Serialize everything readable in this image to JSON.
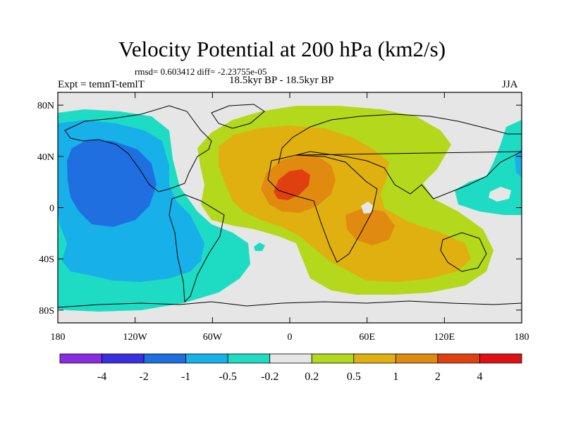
{
  "title": "Velocity Potential at 200 hPa (km2/s)",
  "stats_line": "rmsd= 0.603412 diff= -2.23755e-05",
  "left_label": "Expt = temnT-temlT",
  "center_label": "18.5kyr BP - 18.5kyr BP",
  "right_label": "JJA",
  "map": {
    "lat_ticks": [
      {
        "label": "80N",
        "lat": 80
      },
      {
        "label": "40N",
        "lat": 40
      },
      {
        "label": "0",
        "lat": 0
      },
      {
        "label": "40S",
        "lat": -40
      },
      {
        "label": "80S",
        "lat": -80
      }
    ],
    "lon_ticks": [
      {
        "label": "180",
        "lon": -180
      },
      {
        "label": "120W",
        "lon": -120
      },
      {
        "label": "60W",
        "lon": -60
      },
      {
        "label": "0",
        "lon": 0
      },
      {
        "label": "60E",
        "lon": 60
      },
      {
        "label": "120E",
        "lon": 120
      },
      {
        "label": "180",
        "lon": 180
      }
    ]
  },
  "colorbar": {
    "colors": [
      "#8a2be2",
      "#3a30e0",
      "#1f6fe0",
      "#18b0e8",
      "#1edcc4",
      "#e6e6e6",
      "#b4d81c",
      "#e0b010",
      "#e08a10",
      "#e04010",
      "#e01010"
    ],
    "labels": [
      "-4",
      "-2",
      "-1",
      "-0.5",
      "-0.2",
      "0.2",
      "0.5",
      "1",
      "2",
      "4"
    ]
  },
  "palette": {
    "land_outline": "#000000",
    "neutral": "#e6e6e6"
  }
}
